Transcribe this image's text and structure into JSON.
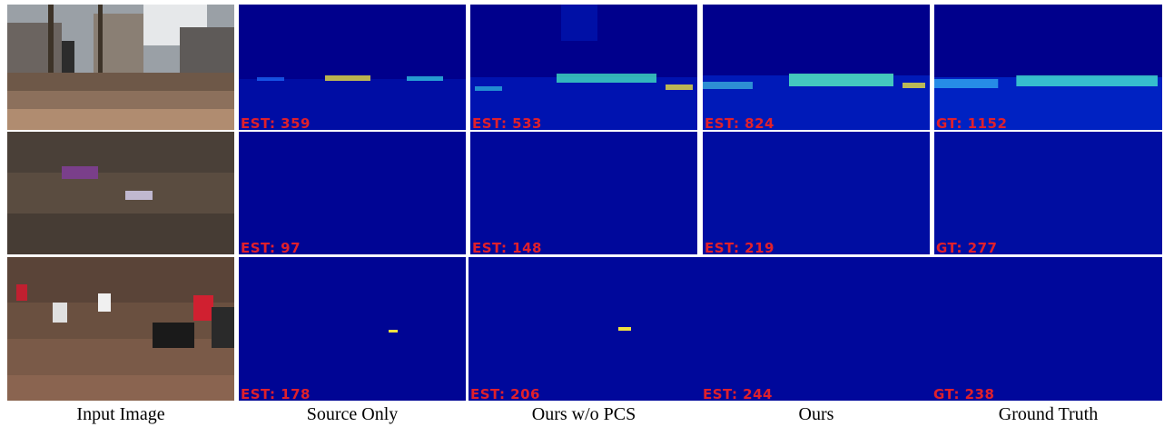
{
  "rows": [
    {
      "input_image": "street crowd photo with statue and trees",
      "estimates": [
        {
          "column": "Source Only",
          "text": "EST: 359"
        },
        {
          "column": "Ours w/o PCS",
          "text": "EST: 533"
        },
        {
          "column": "Ours",
          "text": "EST: 824"
        },
        {
          "column": "Ground Truth",
          "text": "GT: 1152"
        }
      ]
    },
    {
      "input_image": "dense stadium crowd photo with banner",
      "estimates": [
        {
          "column": "Source Only",
          "text": "EST: 97"
        },
        {
          "column": "Ours w/o PCS",
          "text": "EST: 148"
        },
        {
          "column": "Ours",
          "text": "EST: 219"
        },
        {
          "column": "Ground Truth",
          "text": "GT: 277"
        }
      ]
    },
    {
      "input_image": "protest crowd photo with placards",
      "estimates": [
        {
          "column": "Source Only",
          "text": "EST: 178"
        },
        {
          "column": "Ours w/o PCS",
          "text": "EST: 206"
        },
        {
          "column": "Ours",
          "text": "EST: 244"
        },
        {
          "column": "Ground Truth",
          "text": "GT: 238"
        }
      ]
    }
  ],
  "captions": [
    "Input Image",
    "Source Only",
    "Ours w/o PCS",
    "Ours",
    "Ground Truth"
  ],
  "colors": {
    "map_background": "#00008c",
    "label_red": "#e0202c"
  }
}
